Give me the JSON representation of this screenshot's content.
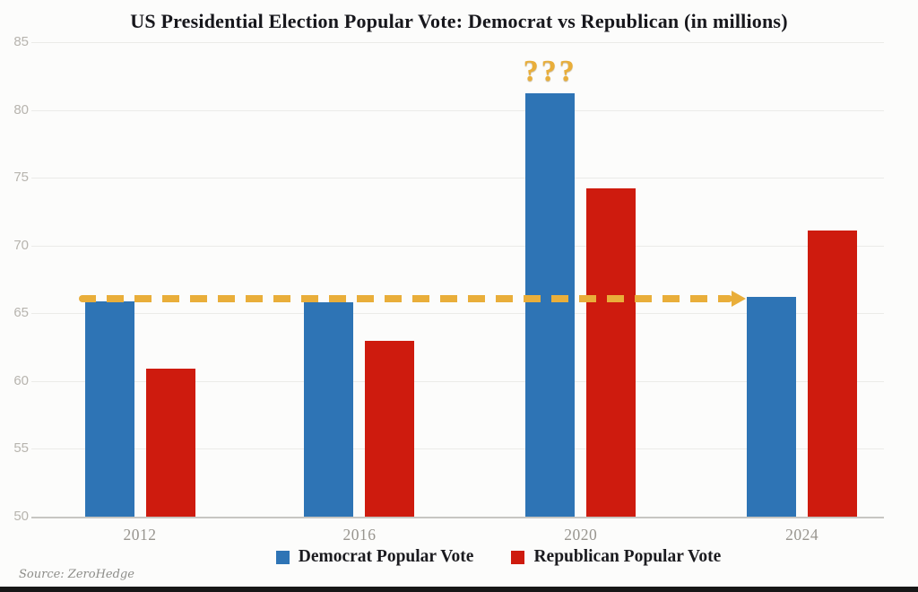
{
  "source_note": "Source: ZeroHedge",
  "colors": {
    "democrat": "#2E74B5",
    "republican": "#CE1B0E",
    "annotation_gold": "#E9AE3A",
    "gridline": "#ebebe8",
    "axis_line": "#c7c6c2",
    "ytick_text": "#b7b4ae",
    "xtick_text": "#98958f",
    "title_text": "#17171c"
  },
  "chart_data": {
    "type": "bar",
    "title": "US Presidential Election Popular Vote: Democrat vs Republican (in millions)",
    "categories": [
      "2012",
      "2016",
      "2020",
      "2024"
    ],
    "series": [
      {
        "name": "Democrat Popular Vote",
        "color": "#2E74B5",
        "values": [
          65.9,
          65.8,
          81.2,
          66.2
        ]
      },
      {
        "name": "Republican Popular Vote",
        "color": "#CE1B0E",
        "values": [
          60.9,
          63.0,
          74.2,
          71.1
        ]
      }
    ],
    "xlabel": "",
    "ylabel": "",
    "ylim": [
      50,
      85
    ],
    "yticks": [
      50,
      55,
      60,
      65,
      70,
      75,
      80,
      85
    ],
    "grid": "horizontal",
    "legend_position": "bottom",
    "annotations": [
      {
        "type": "text",
        "text": "???",
        "category": "2020",
        "series": "Democrat Popular Vote"
      },
      {
        "type": "dashed-arrow",
        "from_category": "2012",
        "to_category": "2024",
        "value": 66.1,
        "direction": "right"
      }
    ]
  }
}
